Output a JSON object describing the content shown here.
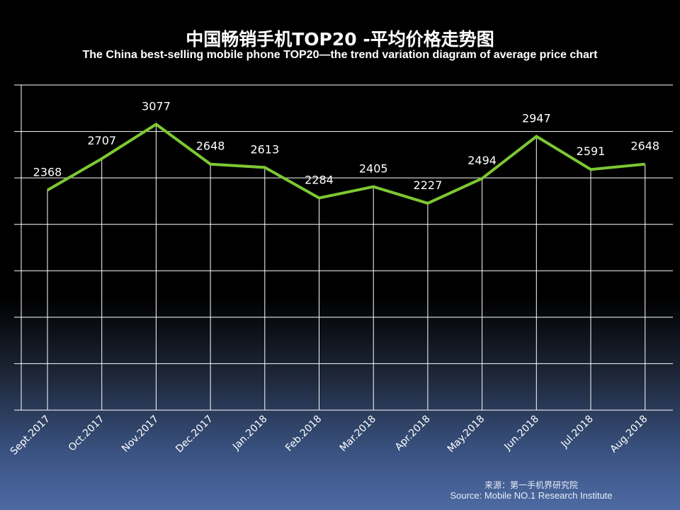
{
  "chart_data": {
    "type": "line",
    "title": "中国畅销手机TOP20 -平均价格走势图",
    "subtitle": "The China best-selling mobile phone TOP20—the trend variation diagram of average price chart",
    "categories": [
      "Sept.2017",
      "Oct.2017",
      "Nov.2017",
      "Dec.2017",
      "Jan.2018",
      "Feb.2018",
      "Mar.2018",
      "Apr.2018",
      "May.2018",
      "Jun.2018",
      "Jul.2018",
      "Aug.2018"
    ],
    "values": [
      2368,
      2707,
      3077,
      2648,
      2613,
      2284,
      2405,
      2227,
      2494,
      2947,
      2591,
      2648
    ],
    "xlabel": "",
    "ylabel": "",
    "ylim": [
      0,
      3500
    ],
    "y_gridlines": [
      0,
      500,
      1000,
      1500,
      2000,
      2500,
      3000,
      3500
    ],
    "grid": true,
    "line_color": "#7dc832"
  },
  "source": {
    "cn": "来源：第一手机界研究院",
    "en": "Source: Mobile NO.1 Research Institute"
  }
}
